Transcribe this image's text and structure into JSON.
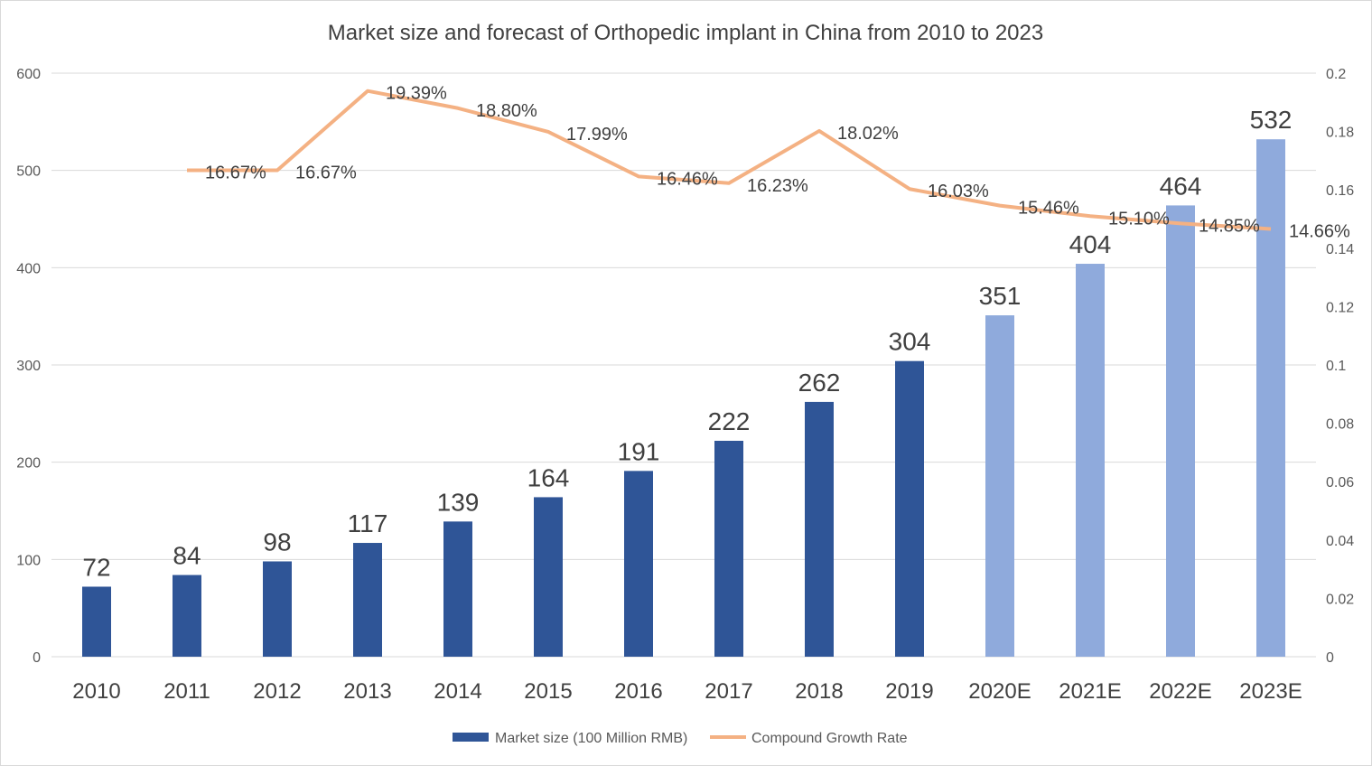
{
  "chart_data": {
    "type": "bar",
    "title": "Market size and forecast of Orthopedic implant in China from 2010 to 2023",
    "categories": [
      "2010",
      "2011",
      "2012",
      "2013",
      "2014",
      "2015",
      "2016",
      "2017",
      "2018",
      "2019",
      "2020E",
      "2021E",
      "2022E",
      "2023E"
    ],
    "series": [
      {
        "name": "Market size (100 Million RMB)",
        "type": "bar",
        "axis": "left",
        "values": [
          72,
          84,
          98,
          117,
          139,
          164,
          191,
          222,
          262,
          304,
          351,
          404,
          464,
          532
        ],
        "labels": [
          "72",
          "84",
          "98",
          "117",
          "139",
          "164",
          "191",
          "222",
          "262",
          "304",
          "351",
          "404",
          "464",
          "532"
        ]
      },
      {
        "name": "Compound Growth Rate",
        "type": "line",
        "axis": "right",
        "values": [
          null,
          0.1667,
          0.1667,
          0.1939,
          0.188,
          0.1799,
          0.1646,
          0.1623,
          0.1802,
          0.1603,
          0.1546,
          0.151,
          0.1485,
          0.1466
        ],
        "labels": [
          null,
          "16.67%",
          "16.67%",
          "19.39%",
          "18.80%",
          "17.99%",
          "16.46%",
          "16.23%",
          "18.02%",
          "16.03%",
          "15.46%",
          "15.10%",
          "14.85%",
          "14.66%"
        ]
      }
    ],
    "left_axis": {
      "ylim": [
        0,
        600
      ],
      "ticks": [
        "0",
        "100",
        "200",
        "300",
        "400",
        "500",
        "600"
      ]
    },
    "right_axis": {
      "ylim": [
        0,
        0.2
      ],
      "ticks": [
        "0",
        "0.02",
        "0.04",
        "0.06",
        "0.08",
        "0.1",
        "0.12",
        "0.14",
        "0.16",
        "0.18",
        "0.2"
      ]
    },
    "grid": true,
    "legend_position": "bottom",
    "colors": {
      "bar_actual": "#2f5597",
      "bar_forecast": "#8faadc",
      "line": "#f4b183",
      "grid": "#d9d9d9"
    }
  }
}
